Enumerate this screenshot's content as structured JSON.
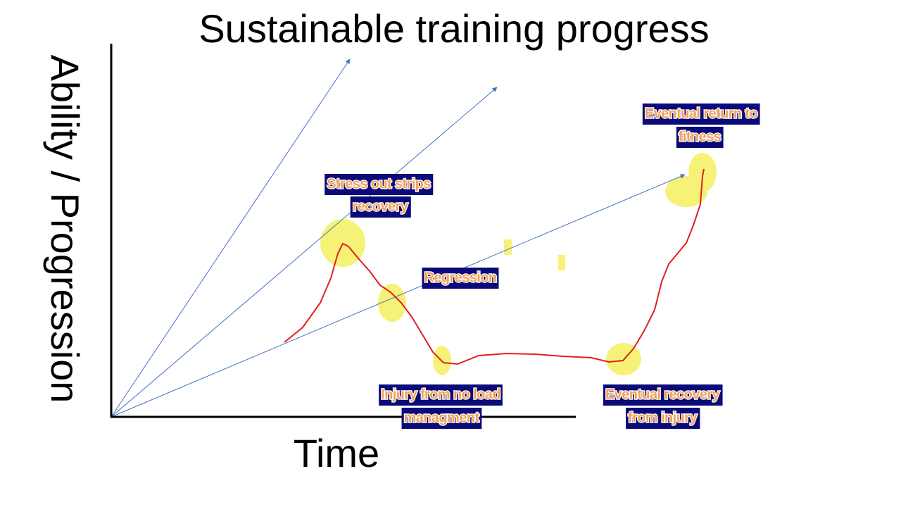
{
  "title": "Sustainable training progress",
  "y_axis_label": "Ability / Progression",
  "x_axis_label": "Time",
  "annotations": [
    {
      "lines": [
        "Stress out strips",
        "recovery"
      ]
    },
    {
      "lines": [
        "Regression"
      ]
    },
    {
      "lines": [
        "Injury from no load",
        "managment"
      ]
    },
    {
      "lines": [
        "Eventual recovery",
        "from injury"
      ]
    },
    {
      "lines": [
        "Eventual return to",
        "fitness"
      ]
    }
  ]
}
